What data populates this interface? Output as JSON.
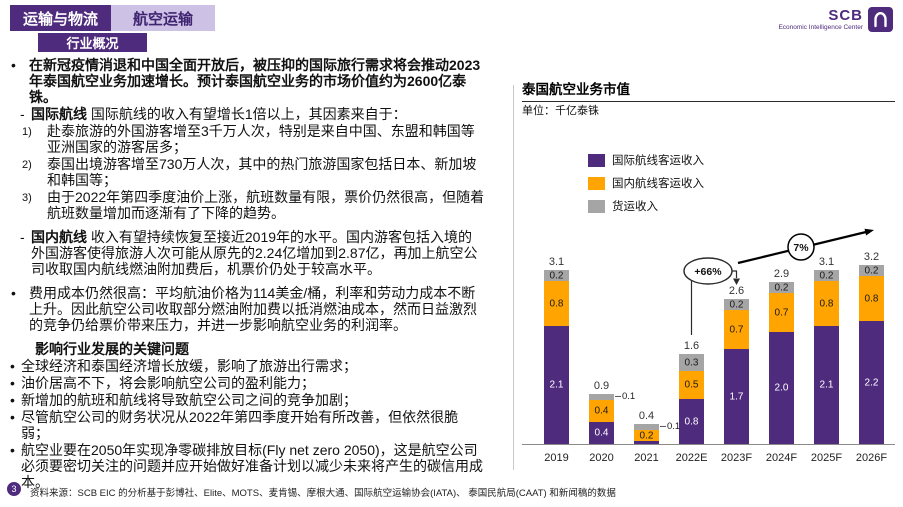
{
  "header": {
    "category_tab": "运输与物流",
    "topic_tab": "航空运输",
    "section_tab": "行业概况",
    "logo": {
      "brand": "SCB",
      "subtitle": "Economic Intelligence Center"
    }
  },
  "colors": {
    "purple": "#4F2B7E",
    "lavender": "#CDC1E6",
    "orange": "#FFA400",
    "gray": "#A5A5A5"
  },
  "left_panel": {
    "paragraphs": [
      {
        "style": "lvl0",
        "marker": "•",
        "bold": true,
        "text": "在新冠疫情消退和中国全面开放后，被压抑的国际旅行需求将会推动2023年泰国航空业务加速增长。预计泰国航空业务的市场价值约为2600亿泰铢。"
      },
      {
        "style": "lvl1",
        "marker": "-",
        "bold_prefix": "国际航线",
        "text": "国际航线的收入有望增长1倍以上，其因素来自于："
      },
      {
        "style": "lvl2",
        "marker": "1)",
        "text": "赴泰旅游的外国游客增至3千万人次，特别是来自中国、东盟和韩国等亚洲国家的游客居多；"
      },
      {
        "style": "lvl2",
        "marker": "2)",
        "text": "泰国出境游客增至730万人次，其中的热门旅游国家包括日本、新加坡和韩国等；"
      },
      {
        "style": "lvl2",
        "marker": "3)",
        "text": "由于2022年第四季度油价上涨，航班数量有限，票价仍然很高，但随着航班数量增加而逐渐有了下降的趋势。",
        "gap_after": true
      },
      {
        "style": "lvl1",
        "marker": "-",
        "bold_prefix": "国内航线",
        "text": "收入有望持续恢复至接近2019年的水平。国内游客包括入境的外国游客使得旅游人次可能从原先的2.24亿增加到2.87亿，再加上航空公司收取国内航线燃油附加费后，机票价仍处于较高水平。",
        "gap_after": true
      },
      {
        "style": "lvl0",
        "marker": "•",
        "text": "费用成本仍然很高：平均航油价格为114美金/桶，利率和劳动力成本不断上升。因此航空公司收取部分燃油附加费以抵消燃油成本，然而日益激烈的竞争仍给票价带来压力，并进一步影响航空业务的利润率。",
        "gap_after": true
      },
      {
        "style": "heading",
        "text": "影响行业发展的关键问题"
      },
      {
        "style": "key",
        "marker": "•",
        "text": "全球经济和泰国经济增长放缓，影响了旅游出行需求；"
      },
      {
        "style": "key",
        "marker": "•",
        "text": "油价居高不下，将会影响航空公司的盈利能力；"
      },
      {
        "style": "key",
        "marker": "•",
        "text": "新增加的航班和航线将导致航空公司之间的竞争加剧；"
      },
      {
        "style": "key",
        "marker": "•",
        "text": "尽管航空公司的财务状况从2022年第四季度开始有所改善，但依然很脆弱；"
      },
      {
        "style": "key",
        "marker": "•",
        "text": "航空业要在2050年实现净零碳排放目标(Fly net zero 2050)，这是航空公司必须要密切关注的问题并应开始做好准备计划以减少未来将产生的碳信用成本。"
      }
    ]
  },
  "chart_data": {
    "type": "bar",
    "stacked": true,
    "title": "泰国航空业务市值",
    "unit_label": "单位：千亿泰铢",
    "categories": [
      "2019",
      "2020",
      "2021",
      "2022E",
      "2023F",
      "2024F",
      "2025F",
      "2026F"
    ],
    "series": [
      {
        "name": "国际航线客运收入",
        "color": "#4F2B7E",
        "values": [
          2.1,
          0.4,
          0.05,
          0.8,
          1.7,
          2.0,
          2.1,
          2.2
        ]
      },
      {
        "name": "国内航线客运收入",
        "color": "#FFA400",
        "values": [
          0.8,
          0.4,
          0.2,
          0.5,
          0.7,
          0.7,
          0.8,
          0.8
        ]
      },
      {
        "name": "货运收入",
        "color": "#A5A5A5",
        "values": [
          0.2,
          0.1,
          0.1,
          0.3,
          0.2,
          0.2,
          0.2,
          0.2
        ]
      }
    ],
    "totals": [
      "3.1",
      "0.9",
      "0.4",
      "1.6",
      "2.6",
      "2.9",
      "3.1",
      "3.2"
    ],
    "annotations": [
      {
        "label": "+66%"
      },
      {
        "label": "7%"
      }
    ],
    "ylim": [
      0,
      3.6
    ],
    "grid": false,
    "legend_position": "top-left"
  },
  "footer": {
    "page_number": "3",
    "source": "资料来源：SCB EIC 的分析基于彭博社、Elite、MOTS、麦肯锡、摩根大通、国际航空运输协会(IATA)、 泰国民航局(CAAT) 和新闻稿的数据"
  }
}
